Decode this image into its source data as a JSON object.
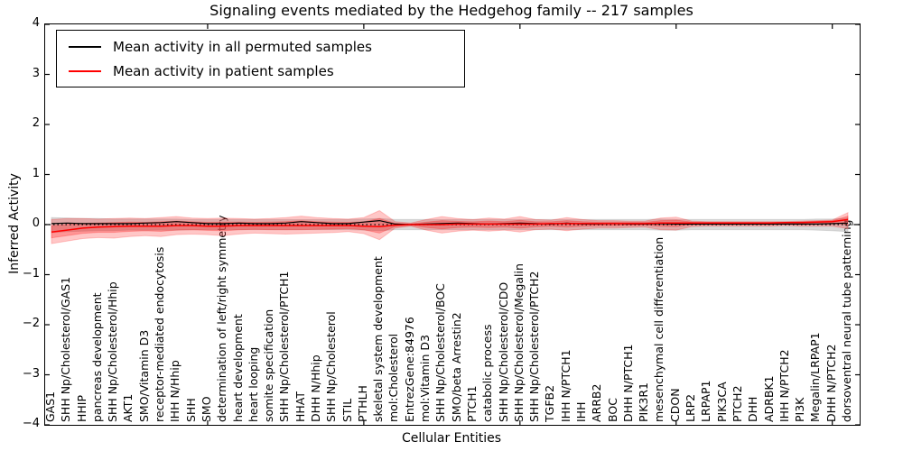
{
  "title": "Signaling events mediated by the Hedgehog family -- 217 samples",
  "chart_data": {
    "type": "line",
    "title": "Signaling events mediated by the Hedgehog family -- 217 samples",
    "xlabel": "Cellular Entities",
    "ylabel": "Inferred Activity",
    "ylim": [
      -4,
      4
    ],
    "yticks": [
      4,
      3,
      2,
      1,
      0,
      -1,
      -2,
      -3,
      -4
    ],
    "x_axis_tick_positions": [
      10,
      20,
      30,
      40,
      50
    ],
    "grid": false,
    "legend_position": "upper-left",
    "zero_line": {
      "value": 0,
      "style": "dotted",
      "color": "#000000"
    },
    "categories": [
      "GAS1",
      "SHH Np/Cholesterol/GAS1",
      "HHIP",
      "pancreas development",
      "SHH Np/Cholesterol/Hhip",
      "AKT1",
      "SMO/Vitamin D3",
      "receptor-mediated endocytosis",
      "IHH N/Hhip",
      "SHH",
      "SMO",
      "determination of left/right symmetry",
      "heart development",
      "heart looping",
      "somite specification",
      "SHH Np/Cholesterol/PTCH1",
      "HHAT",
      "DHH N/Hhip",
      "SHH Np/Cholesterol",
      "STIL",
      "PTHLH",
      "skeletal system development",
      "mol:Cholesterol",
      "EntrezGene:84976",
      "mol:Vitamin D3",
      "SHH Np/Cholesterol/BOC",
      "SMO/beta Arrestin2",
      "PTCH1",
      "catabolic process",
      "SHH Np/Cholesterol/CDO",
      "SHH Np/Cholesterol/Megalin",
      "SHH Np/Cholesterol/PTCH2",
      "TGFB2",
      "IHH N/PTCH1",
      "IHH",
      "ARRB2",
      "BOC",
      "DHH N/PTCH1",
      "PIK3R1",
      "mesenchymal cell differentiation",
      "CDON",
      "LRP2",
      "LRPAP1",
      "PIK3CA",
      "PTCH2",
      "DHH",
      "ADRBK1",
      "IHH N/PTCH2",
      "PI3K",
      "Megalin/LRPAP1",
      "DHH N/PTCH2",
      "dorsoventral neural tube patterning"
    ],
    "series": [
      {
        "name": "Mean activity in all permuted samples",
        "color": "#000000",
        "values": [
          0.02,
          0.03,
          0.02,
          0.02,
          0.02,
          0.02,
          0.03,
          0.04,
          0.06,
          0.04,
          0.02,
          0.02,
          0.03,
          0.02,
          0.02,
          0.03,
          0.06,
          0.04,
          0.02,
          0.02,
          0.05,
          0.08,
          0.01,
          0.0,
          0.01,
          0.02,
          0.03,
          0.02,
          0.01,
          0.02,
          0.03,
          0.02,
          0.01,
          0.03,
          0.01,
          0.01,
          0.02,
          0.01,
          0.01,
          0.02,
          0.01,
          0.01,
          0.01,
          0.01,
          0.01,
          0.01,
          0.01,
          0.01,
          0.01,
          0.01,
          0.02,
          0.03
        ]
      },
      {
        "name": "Mean activity in patient samples",
        "color": "#ff0000",
        "values": [
          -0.15,
          -0.11,
          -0.07,
          -0.05,
          -0.04,
          -0.03,
          -0.03,
          -0.03,
          -0.02,
          -0.02,
          -0.03,
          -0.03,
          -0.02,
          -0.02,
          -0.02,
          -0.02,
          -0.02,
          -0.02,
          -0.02,
          -0.02,
          -0.03,
          -0.04,
          -0.01,
          0.0,
          0.0,
          0.0,
          0.01,
          0.01,
          0.01,
          0.01,
          0.01,
          0.01,
          0.02,
          0.02,
          0.02,
          0.02,
          0.02,
          0.02,
          0.02,
          0.03,
          0.03,
          0.03,
          0.03,
          0.03,
          0.03,
          0.03,
          0.03,
          0.04,
          0.04,
          0.05,
          0.06,
          0.1
        ]
      }
    ],
    "bands": [
      {
        "name": "permuted-sample-range",
        "color": "#b4b4b4",
        "opacity": 0.5,
        "upper": [
          0.14,
          0.13,
          0.12,
          0.12,
          0.11,
          0.11,
          0.11,
          0.11,
          0.11,
          0.1,
          0.1,
          0.1,
          0.1,
          0.1,
          0.1,
          0.1,
          0.1,
          0.1,
          0.1,
          0.1,
          0.11,
          0.12,
          0.1,
          0.1,
          0.1,
          0.1,
          0.1,
          0.1,
          0.1,
          0.1,
          0.1,
          0.1,
          0.1,
          0.1,
          0.1,
          0.1,
          0.1,
          0.1,
          0.1,
          0.11,
          0.1,
          0.1,
          0.1,
          0.1,
          0.1,
          0.1,
          0.1,
          0.1,
          0.1,
          0.11,
          0.11,
          0.13
        ],
        "lower": [
          -0.16,
          -0.14,
          -0.13,
          -0.12,
          -0.12,
          -0.11,
          -0.11,
          -0.11,
          -0.11,
          -0.1,
          -0.1,
          -0.1,
          -0.1,
          -0.1,
          -0.1,
          -0.1,
          -0.1,
          -0.1,
          -0.1,
          -0.1,
          -0.11,
          -0.12,
          -0.1,
          -0.1,
          -0.1,
          -0.1,
          -0.1,
          -0.1,
          -0.1,
          -0.1,
          -0.1,
          -0.1,
          -0.1,
          -0.1,
          -0.1,
          -0.1,
          -0.1,
          -0.1,
          -0.1,
          -0.11,
          -0.11,
          -0.1,
          -0.1,
          -0.1,
          -0.1,
          -0.1,
          -0.1,
          -0.1,
          -0.1,
          -0.11,
          -0.12,
          -0.14
        ]
      },
      {
        "name": "patient-sample-range",
        "color": "#ff0000",
        "opacity": 0.22,
        "upper": [
          0.1,
          0.12,
          0.12,
          0.11,
          0.12,
          0.13,
          0.12,
          0.14,
          0.16,
          0.13,
          0.12,
          0.13,
          0.12,
          0.11,
          0.12,
          0.14,
          0.17,
          0.14,
          0.12,
          0.11,
          0.14,
          0.28,
          0.06,
          0.03,
          0.1,
          0.16,
          0.12,
          0.1,
          0.13,
          0.11,
          0.16,
          0.1,
          0.09,
          0.14,
          0.1,
          0.08,
          0.08,
          0.07,
          0.07,
          0.13,
          0.15,
          0.07,
          0.06,
          0.06,
          0.06,
          0.06,
          0.06,
          0.06,
          0.07,
          0.08,
          0.09,
          0.24
        ],
        "lower": [
          -0.38,
          -0.33,
          -0.28,
          -0.26,
          -0.27,
          -0.24,
          -0.22,
          -0.24,
          -0.2,
          -0.19,
          -0.2,
          -0.22,
          -0.19,
          -0.17,
          -0.18,
          -0.19,
          -0.18,
          -0.17,
          -0.16,
          -0.14,
          -0.18,
          -0.3,
          -0.07,
          -0.03,
          -0.11,
          -0.17,
          -0.13,
          -0.11,
          -0.13,
          -0.11,
          -0.15,
          -0.1,
          -0.09,
          -0.12,
          -0.09,
          -0.07,
          -0.07,
          -0.06,
          -0.05,
          -0.1,
          -0.11,
          -0.04,
          -0.03,
          -0.03,
          -0.03,
          -0.03,
          -0.03,
          -0.02,
          -0.03,
          -0.03,
          -0.03,
          -0.08
        ]
      }
    ],
    "legend": [
      {
        "label": "Mean activity in all permuted samples",
        "color": "#000000"
      },
      {
        "label": "Mean activity in patient samples",
        "color": "#ff0000"
      }
    ]
  }
}
